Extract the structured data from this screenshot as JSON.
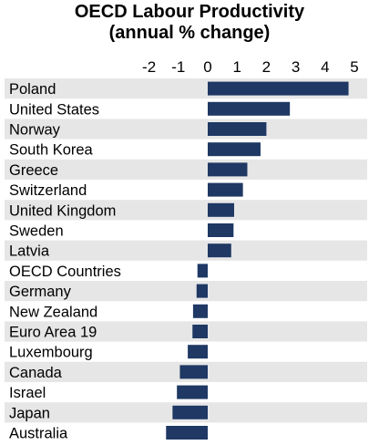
{
  "chart_data": {
    "type": "bar",
    "orientation": "horizontal",
    "title": "OECD Labour Productivity",
    "subtitle": "(annual % change)",
    "xlabel": "",
    "ylabel": "",
    "xlim": [
      -2,
      5
    ],
    "ticks": [
      "-2",
      "-1",
      "0",
      "1",
      "2",
      "3",
      "4",
      "5"
    ],
    "tick_values": [
      -2,
      -1,
      0,
      1,
      2,
      3,
      4,
      5
    ],
    "categories": [
      "Poland",
      "United States",
      "Norway",
      "South Korea",
      "Greece",
      "Switzerland",
      "United Kingdom",
      "Sweden",
      "Latvia",
      "OECD Countries",
      "Germany",
      "New Zealand",
      "Euro Area 19",
      "Luxembourg",
      "Canada",
      "Israel",
      "Japan",
      "Australia"
    ],
    "values": [
      4.8,
      2.8,
      2.0,
      1.8,
      1.35,
      1.2,
      0.9,
      0.88,
      0.8,
      -0.35,
      -0.38,
      -0.5,
      -0.52,
      -0.68,
      -0.95,
      -1.05,
      -1.2,
      -1.42
    ],
    "bar_color": "#1f3864",
    "stripe_color": "#e6e6e6",
    "grid": false,
    "legend": "none"
  }
}
